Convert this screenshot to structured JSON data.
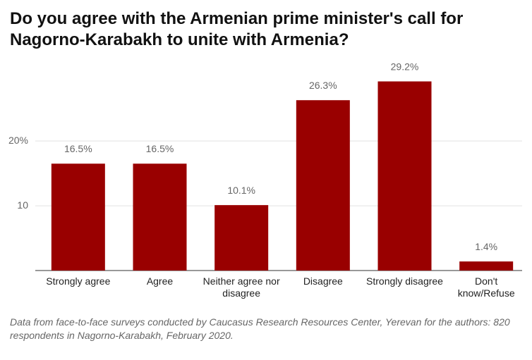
{
  "chart_data": {
    "type": "bar",
    "title": "Do you agree with the Armenian prime minister's call for Nagorno-Karabakh to unite with Armenia?",
    "note": "Data from face-to-face surveys conducted by Caucasus Research Resources Center, Yerevan for the authors: 820 respondents in Nagorno-Karabakh, February 2020.",
    "categories": [
      "Strongly agree",
      "Agree",
      "Neither agree nor disagree",
      "Disagree",
      "Strongly disagree",
      "Don't know/Refuse"
    ],
    "values": [
      16.5,
      16.5,
      10.1,
      26.3,
      29.2,
      1.4
    ],
    "value_labels": [
      "16.5%",
      "16.5%",
      "10.1%",
      "26.3%",
      "29.2%",
      "1.4%"
    ],
    "color": "#990000",
    "ylim": [
      0,
      31
    ],
    "yticks": [
      10,
      {
        "value": 20,
        "label": "20%"
      }
    ],
    "grid": true
  }
}
